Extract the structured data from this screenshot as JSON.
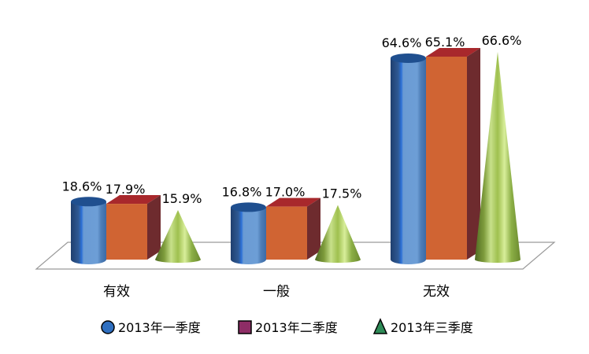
{
  "chart_data": {
    "type": "bar",
    "categories": [
      "有效",
      "一般",
      "无效"
    ],
    "series": [
      {
        "name": "2013年一季度",
        "values": [
          18.6,
          16.8,
          64.6
        ],
        "labels": [
          "18.6%",
          "16.8%",
          "64.6%"
        ],
        "shape": "cylinder",
        "color": "#4f81bd"
      },
      {
        "name": "2013年二季度",
        "values": [
          17.9,
          17.0,
          65.1
        ],
        "labels": [
          "17.9%",
          "17.0%",
          "65.1%"
        ],
        "shape": "box",
        "color": "#c0504d"
      },
      {
        "name": "2013年三季度",
        "values": [
          15.9,
          17.5,
          66.6
        ],
        "labels": [
          "15.9%",
          "17.5%",
          "66.6%"
        ],
        "shape": "cone",
        "color": "#9bbb59"
      }
    ],
    "ylim": [
      0,
      70
    ],
    "grid": false,
    "legend_position": "bottom",
    "title": "",
    "xlabel": "",
    "ylabel": ""
  }
}
